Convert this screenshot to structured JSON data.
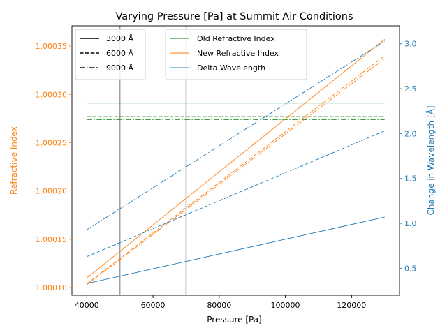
{
  "chart_data": {
    "type": "line",
    "title": "Varying Pressure [Pa] at Summit Air Conditions",
    "xlabel": "Pressure [Pa]",
    "ylabel_left": "Refractive Index",
    "ylabel_right": "Change in Wavelength [Å]",
    "xlim": [
      35500,
      134500
    ],
    "ylim_left": [
      1.0000921,
      1.000371
    ],
    "ylim_right": [
      0.2,
      3.2
    ],
    "x_ticks": [
      40000,
      60000,
      80000,
      100000,
      120000
    ],
    "x_tick_labels": [
      "40000",
      "60000",
      "80000",
      "100000",
      "120000"
    ],
    "y_left_ticks": [
      1.0001,
      1.00015,
      1.0002,
      1.00025,
      1.0003,
      1.00035
    ],
    "y_left_tick_labels": [
      "1.00010",
      "1.00015",
      "1.00020",
      "1.00025",
      "1.00030",
      "1.00035"
    ],
    "y_right_ticks": [
      0.5,
      1.0,
      1.5,
      2.0,
      2.5,
      3.0
    ],
    "y_right_tick_labels": [
      "0.5",
      "1.0",
      "1.5",
      "2.0",
      "2.5",
      "3.0"
    ],
    "vlines": [
      50000,
      70000
    ],
    "colors": {
      "old": "#008000",
      "new": "#ff7f0e",
      "delta": "#1f77b4",
      "vline": "#a0a0a0",
      "left_axis": "#ff7f0e",
      "right_axis": "#1f77b4"
    },
    "legend_styles": {
      "position": "top-left",
      "entries": [
        {
          "label": "3000 Å",
          "dash": "solid"
        },
        {
          "label": "6000 Å",
          "dash": "dashed"
        },
        {
          "label": "9000 Å",
          "dash": "dashdot"
        }
      ]
    },
    "legend_series": {
      "position": "top-center",
      "entries": [
        {
          "label": "Old Refractive Index",
          "color_key": "old"
        },
        {
          "label": "New Refractive Index",
          "color_key": "new"
        },
        {
          "label": "Delta Wavelength",
          "color_key": "delta"
        }
      ]
    },
    "series": [
      {
        "kind": "old",
        "axis": "left",
        "wavelength": "3000 Å",
        "dash": "solid",
        "x": [
          40000,
          130000
        ],
        "y": [
          1.000291,
          1.000291
        ]
      },
      {
        "kind": "old",
        "axis": "left",
        "wavelength": "6000 Å",
        "dash": "dashed",
        "x": [
          40000,
          130000
        ],
        "y": [
          1.000277,
          1.000277
        ]
      },
      {
        "kind": "old",
        "axis": "left",
        "wavelength": "9000 Å",
        "dash": "dashdot",
        "x": [
          40000,
          130000
        ],
        "y": [
          1.000274,
          1.000274
        ]
      },
      {
        "kind": "new",
        "axis": "left",
        "wavelength": "3000 Å",
        "dash": "solid",
        "x": [
          40000,
          130000
        ],
        "y": [
          1.00011,
          1.000357
        ]
      },
      {
        "kind": "new",
        "axis": "left",
        "wavelength": "6000 Å",
        "dash": "dashed",
        "x": [
          40000,
          130000
        ],
        "y": [
          1.000104,
          1.00034
        ]
      },
      {
        "kind": "new",
        "axis": "left",
        "wavelength": "9000 Å",
        "dash": "dashdot",
        "x": [
          40000,
          130000
        ],
        "y": [
          1.000103,
          1.000337
        ]
      },
      {
        "kind": "delta",
        "axis": "right",
        "wavelength": "3000 Å",
        "dash": "solid",
        "x": [
          40000,
          130000
        ],
        "y": [
          0.33,
          1.07
        ]
      },
      {
        "kind": "delta",
        "axis": "right",
        "wavelength": "6000 Å",
        "dash": "dashed",
        "x": [
          40000,
          130000
        ],
        "y": [
          0.63,
          2.03
        ]
      },
      {
        "kind": "delta",
        "axis": "right",
        "wavelength": "9000 Å",
        "dash": "dashdot",
        "x": [
          40000,
          130000
        ],
        "y": [
          0.93,
          3.03
        ]
      }
    ]
  }
}
